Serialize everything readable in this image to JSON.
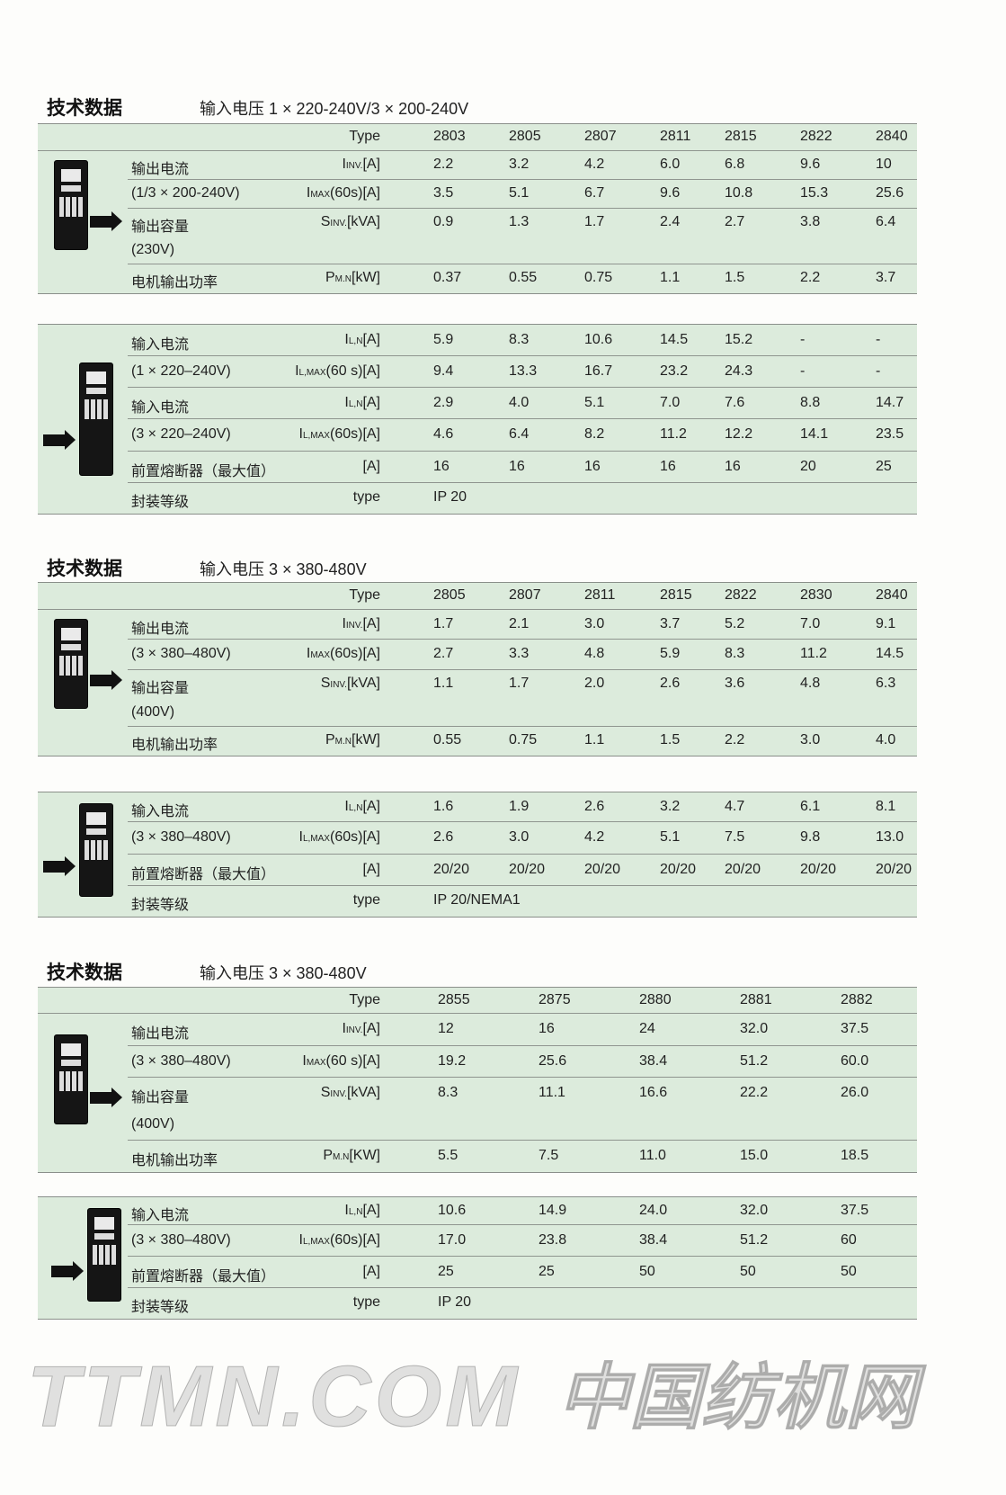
{
  "sections": [
    {
      "title": "技术数据",
      "subtitle": "输入电压 1 × 220-240V/3 × 200-240V",
      "tables": [
        {
          "rows": [
            {
              "label": "",
              "unit": [
                "Type",
                "",
                ""
              ],
              "values": [
                "2803",
                "2805",
                "2807",
                "2811",
                "2815",
                "2822",
                "2840"
              ]
            },
            {
              "label": "输出电流",
              "unit": [
                "I",
                "INV.",
                "[A]"
              ],
              "values": [
                "2.2",
                "3.2",
                "4.2",
                "6.0",
                "6.8",
                "9.6",
                "10"
              ]
            },
            {
              "label": "(1/3 × 200-240V)",
              "unit": [
                "I",
                "MAX",
                "(60s)[A]"
              ],
              "values": [
                "3.5",
                "5.1",
                "6.7",
                "9.6",
                "10.8",
                "15.3",
                "25.6"
              ]
            },
            {
              "label": "输出容量",
              "unit": [
                "S",
                "INV.",
                "[kVA]"
              ],
              "values": [
                "0.9",
                "1.3",
                "1.7",
                "2.4",
                "2.7",
                "3.8",
                "6.4"
              ],
              "nob": true
            },
            {
              "label": "(230V)",
              "unit": [
                "",
                "",
                ""
              ],
              "values": []
            },
            {
              "label": "电机输出功率",
              "unit": [
                "P",
                "M.N",
                "[kW]"
              ],
              "values": [
                "0.37",
                "0.55",
                "0.75",
                "1.1",
                "1.5",
                "2.2",
                "3.7"
              ]
            }
          ]
        },
        {
          "rows": [
            {
              "label": "输入电流",
              "unit": [
                "I",
                "L,N",
                "[A]"
              ],
              "values": [
                "5.9",
                "8.3",
                "10.6",
                "14.5",
                "15.2",
                "-",
                "-"
              ]
            },
            {
              "label": "(1 × 220–240V)",
              "unit": [
                "I",
                "L,MAX",
                "(60 s)[A]"
              ],
              "values": [
                "9.4",
                "13.3",
                "16.7",
                "23.2",
                "24.3",
                "-",
                "-"
              ]
            },
            {
              "label": "输入电流",
              "unit": [
                "I",
                "L,N",
                "[A]"
              ],
              "values": [
                "2.9",
                "4.0",
                "5.1",
                "7.0",
                "7.6",
                "8.8",
                "14.7"
              ]
            },
            {
              "label": "(3 × 220–240V)",
              "unit": [
                "I",
                "L,MAX",
                "(60s)[A]"
              ],
              "values": [
                "4.6",
                "6.4",
                "8.2",
                "11.2",
                "12.2",
                "14.1",
                "23.5"
              ]
            },
            {
              "label": "前置熔断器（最大值）",
              "unit": [
                "",
                "",
                "[A]"
              ],
              "values": [
                "16",
                "16",
                "16",
                "16",
                "16",
                "20",
                "25"
              ]
            },
            {
              "label": "封装等级",
              "unit": [
                "type",
                "",
                ""
              ],
              "values": [
                "IP 20"
              ]
            }
          ]
        }
      ]
    },
    {
      "title": "技术数据",
      "subtitle": "输入电压 3 × 380-480V",
      "tables": [
        {
          "rows": [
            {
              "label": "",
              "unit": [
                "Type",
                "",
                ""
              ],
              "values": [
                "2805",
                "2807",
                "2811",
                "2815",
                "2822",
                "2830",
                "2840"
              ]
            },
            {
              "label": "输出电流",
              "unit": [
                "I",
                "INV.",
                "[A]"
              ],
              "values": [
                "1.7",
                "2.1",
                "3.0",
                "3.7",
                "5.2",
                "7.0",
                "9.1"
              ]
            },
            {
              "label": "(3 × 380–480V)",
              "unit": [
                "I",
                "MAX",
                "(60s)[A]"
              ],
              "values": [
                "2.7",
                "3.3",
                "4.8",
                "5.9",
                "8.3",
                "11.2",
                "14.5"
              ]
            },
            {
              "label": "输出容量",
              "unit": [
                "S",
                "INV.",
                "[kVA]"
              ],
              "values": [
                "1.1",
                "1.7",
                "2.0",
                "2.6",
                "3.6",
                "4.8",
                "6.3"
              ],
              "nob": true
            },
            {
              "label": "(400V)",
              "unit": [
                "",
                "",
                ""
              ],
              "values": []
            },
            {
              "label": "电机输出功率",
              "unit": [
                "P",
                "M.N",
                "[kW]"
              ],
              "values": [
                "0.55",
                "0.75",
                "1.1",
                "1.5",
                "2.2",
                "3.0",
                "4.0"
              ]
            }
          ]
        },
        {
          "rows": [
            {
              "label": "输入电流",
              "unit": [
                "I",
                "L,N",
                "[A]"
              ],
              "values": [
                "1.6",
                "1.9",
                "2.6",
                "3.2",
                "4.7",
                "6.1",
                "8.1"
              ]
            },
            {
              "label": "(3 × 380–480V)",
              "unit": [
                "I",
                "L,MAX",
                "(60s)[A]"
              ],
              "values": [
                "2.6",
                "3.0",
                "4.2",
                "5.1",
                "7.5",
                "9.8",
                "13.0"
              ]
            },
            {
              "label": "前置熔断器（最大值）",
              "unit": [
                "",
                "",
                "[A]"
              ],
              "values": [
                "20/20",
                "20/20",
                "20/20",
                "20/20",
                "20/20",
                "20/20",
                "20/20"
              ]
            },
            {
              "label": "封装等级",
              "unit": [
                "type",
                "",
                ""
              ],
              "values": [
                "IP 20/NEMA1"
              ]
            }
          ]
        }
      ]
    },
    {
      "title": "技术数据",
      "subtitle": "输入电压 3 × 380-480V",
      "tables": [
        {
          "rows": [
            {
              "label": "",
              "unit": [
                "Type",
                "",
                ""
              ],
              "values": [
                "2855",
                "2875",
                "2880",
                "2881",
                "2882"
              ]
            },
            {
              "label": "输出电流",
              "unit": [
                "I",
                "INV.",
                "[A]"
              ],
              "values": [
                "12",
                "16",
                "24",
                "32.0",
                "37.5"
              ]
            },
            {
              "label": "(3 × 380–480V)",
              "unit": [
                "I",
                "MAX",
                "(60 s)[A]"
              ],
              "values": [
                "19.2",
                "25.6",
                "38.4",
                "51.2",
                "60.0"
              ]
            },
            {
              "label": "输出容量",
              "unit": [
                "S",
                "INV.",
                "[kVA]"
              ],
              "values": [
                "8.3",
                "11.1",
                "16.6",
                "22.2",
                "26.0"
              ],
              "nob": true
            },
            {
              "label": "(400V)",
              "unit": [
                "",
                "",
                ""
              ],
              "values": []
            },
            {
              "label": "电机输出功率",
              "unit": [
                "P",
                "M.N",
                "[KW]"
              ],
              "values": [
                "5.5",
                "7.5",
                "11.0",
                "15.0",
                "18.5"
              ]
            }
          ]
        },
        {
          "rows": [
            {
              "label": "输入电流",
              "unit": [
                "I",
                "L,N",
                "[A]"
              ],
              "values": [
                "10.6",
                "14.9",
                "24.0",
                "32.0",
                "37.5"
              ]
            },
            {
              "label": "(3 × 380–480V)",
              "unit": [
                "I",
                "L,MAX",
                "(60s)[A]"
              ],
              "values": [
                "17.0",
                "23.8",
                "38.4",
                "51.2",
                "60"
              ]
            },
            {
              "label": "前置熔断器（最大值）",
              "unit": [
                "",
                "",
                "[A]"
              ],
              "values": [
                "25",
                "25",
                "50",
                "50",
                "50"
              ]
            },
            {
              "label": "封装等级",
              "unit": [
                "type",
                "",
                ""
              ],
              "values": [
                "IP 20"
              ]
            }
          ]
        }
      ]
    }
  ],
  "watermark": {
    "line1": "TTMN.COM",
    "line2": "中国纺机网"
  },
  "colors": {
    "table_bg": "#dcebdc",
    "rule": "#8f958f"
  }
}
